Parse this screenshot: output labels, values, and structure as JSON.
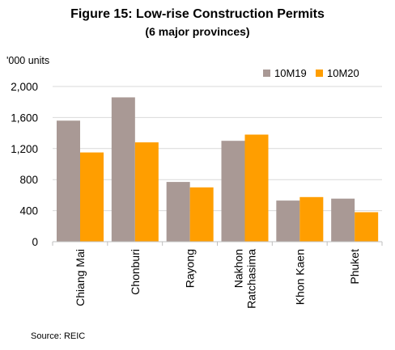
{
  "chart_data": {
    "type": "bar",
    "title": "Figure 15: Low-rise Construction Permits",
    "subtitle": "(6 major provinces)",
    "ylabel": "'000 units",
    "categories": [
      [
        "Chiang Mai"
      ],
      [
        "Chonburi"
      ],
      [
        "Rayong"
      ],
      [
        "Nakhon",
        "Ratchasima"
      ],
      [
        "Khon Kaen"
      ],
      [
        "Phuket"
      ]
    ],
    "series": [
      {
        "name": "10M19",
        "color": "#A99995",
        "values": [
          1560,
          1860,
          770,
          1300,
          530,
          555
        ]
      },
      {
        "name": "10M20",
        "color": "#FF9E00",
        "values": [
          1150,
          1280,
          700,
          1380,
          575,
          380
        ]
      }
    ],
    "ylim": [
      0,
      2000
    ],
    "yticks": [
      0,
      400,
      800,
      1200,
      1600,
      2000
    ],
    "ytick_labels": [
      "0",
      "400",
      "800",
      "1,200",
      "1,600",
      "2,000"
    ],
    "grid": true,
    "legend_position": "top-right"
  },
  "source": "Source: REIC"
}
